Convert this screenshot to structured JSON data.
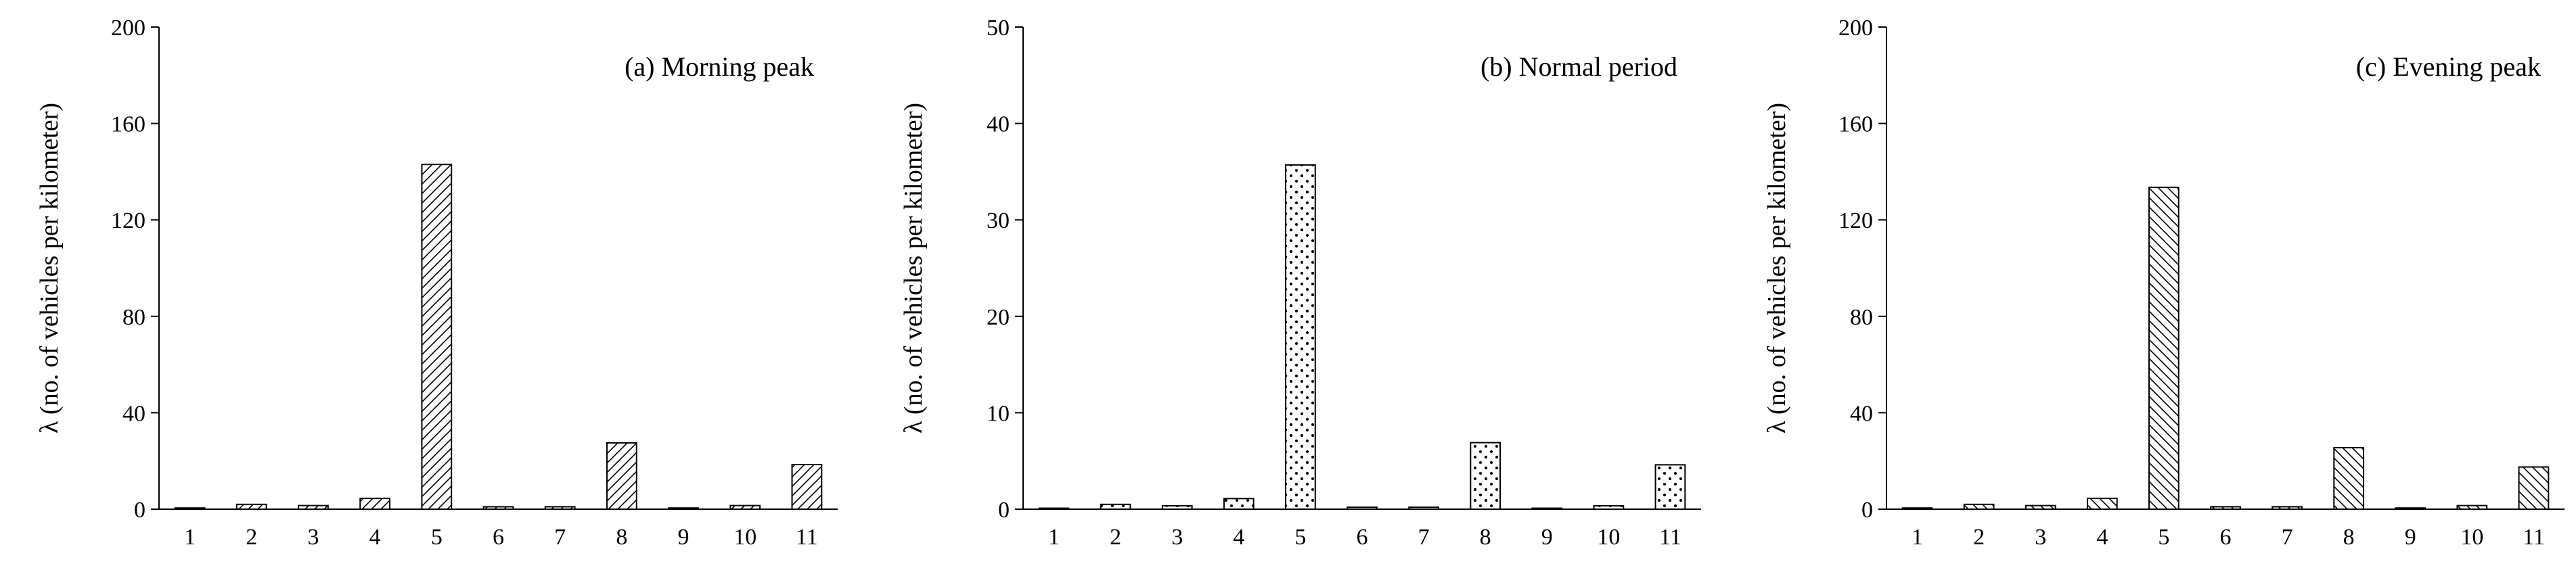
{
  "patterns": {
    "diag_fwd": "diagonal-hatch-forward",
    "dots": "dot-pattern",
    "diag_back": "diagonal-hatch-backward"
  },
  "chart_data": [
    {
      "type": "bar",
      "title": "(a) Morning peak",
      "ylabel": "λ (no. of vehicles per kilometer)",
      "xlabel": "",
      "categories": [
        "1",
        "2",
        "3",
        "4",
        "5",
        "6",
        "7",
        "8",
        "9",
        "10",
        "11"
      ],
      "values": [
        0.5,
        2,
        1.5,
        4.5,
        143,
        1,
        1,
        27.5,
        0.5,
        1.5,
        18.5
      ],
      "ylim": [
        0,
        200
      ],
      "yticks": [
        "0",
        "40",
        "80",
        "120",
        "160",
        "200"
      ],
      "fill_pattern": "diag_fwd"
    },
    {
      "type": "bar",
      "title": "(b) Normal period",
      "ylabel": "λ (no. of vehicles per kilometer)",
      "xlabel": "",
      "categories": [
        "1",
        "2",
        "3",
        "4",
        "5",
        "6",
        "7",
        "8",
        "9",
        "10",
        "11"
      ],
      "values": [
        0.1,
        0.5,
        0.35,
        1.1,
        35.7,
        0.2,
        0.2,
        6.9,
        0.1,
        0.35,
        4.6
      ],
      "ylim": [
        0,
        50
      ],
      "yticks": [
        "0",
        "10",
        "20",
        "30",
        "40",
        "50"
      ],
      "fill_pattern": "dots"
    },
    {
      "type": "bar",
      "title": "(c) Evening peak",
      "ylabel": "λ (no. of vehicles per kilometer)",
      "xlabel": "",
      "categories": [
        "1",
        "2",
        "3",
        "4",
        "5",
        "6",
        "7",
        "8",
        "9",
        "10",
        "11"
      ],
      "values": [
        0.5,
        2,
        1.5,
        4.5,
        133.5,
        1,
        1,
        25.5,
        0.5,
        1.5,
        17.5
      ],
      "ylim": [
        0,
        200
      ],
      "yticks": [
        "0",
        "40",
        "80",
        "120",
        "160",
        "200"
      ],
      "fill_pattern": "diag_back"
    }
  ]
}
